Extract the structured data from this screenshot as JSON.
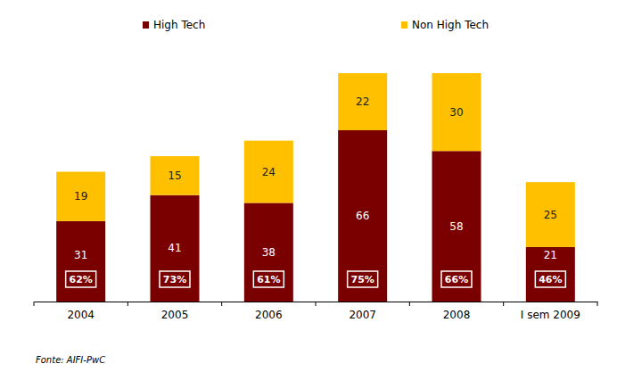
{
  "chart_data": {
    "type": "bar",
    "stacked": true,
    "data_labels": true,
    "legend": "top",
    "tick_labels": "x",
    "categories": [
      "2004",
      "2005",
      "2006",
      "2007",
      "2008",
      "I sem 2009"
    ],
    "series": [
      {
        "name": "High Tech",
        "color": "#7a0000",
        "values": [
          31,
          41,
          38,
          66,
          58,
          21
        ]
      },
      {
        "name": "Non High Tech",
        "color": "#ffc000",
        "values": [
          19,
          15,
          24,
          22,
          30,
          25
        ]
      }
    ],
    "high_tech_share": {
      "values": [
        62,
        73,
        61,
        75,
        66,
        46
      ],
      "value_labels": [
        "62%",
        "73%",
        "61%",
        "75%",
        "66%",
        "46%"
      ]
    },
    "ylim": [
      0,
      88
    ],
    "source": "Fonte: AIFI-PwC"
  }
}
